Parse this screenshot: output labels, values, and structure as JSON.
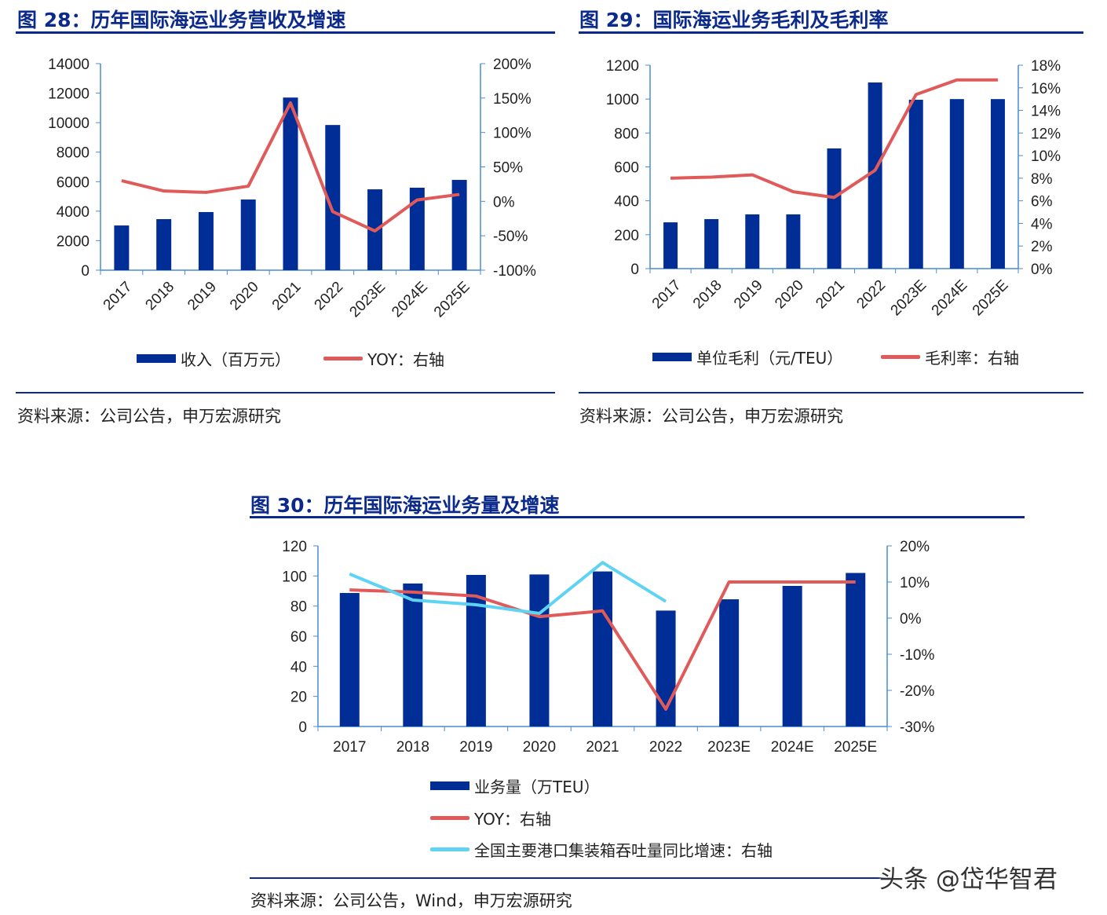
{
  "colors": {
    "bar": "#002d96",
    "line": "#e05a5a",
    "line2": "#5fd3f3",
    "axis": "#4a8ccf",
    "title": "#0b2a8c"
  },
  "charts": [
    {
      "id": "fig28",
      "title": "图 28：历年国际海运业务营收及增速",
      "source": "资料来源：公司公告，申万宏源研究",
      "legend": [
        "收入（百万元）",
        "YOY：右轴"
      ],
      "chart_data": {
        "type": "bar+line",
        "categories": [
          "2017",
          "2018",
          "2019",
          "2020",
          "2021",
          "2022",
          "2023E",
          "2024E",
          "2025E"
        ],
        "series": [
          {
            "name": "收入（百万元）",
            "type": "bar",
            "axis": "left",
            "values": [
              3030,
              3460,
              3940,
              4790,
              11700,
              9840,
              5480,
              5590,
              6120
            ]
          },
          {
            "name": "YOY：右轴",
            "type": "line",
            "axis": "right",
            "values": [
              30,
              15,
              13,
              22,
              143,
              -15,
              -43,
              2,
              10
            ]
          }
        ],
        "ylim_left": [
          0,
          14000
        ],
        "yticks_left": [
          "0",
          "2000",
          "4000",
          "6000",
          "8000",
          "10000",
          "12000",
          "14000"
        ],
        "ylim_right": [
          -100,
          200
        ],
        "yticks_right": [
          "-100%",
          "-50%",
          "0%",
          "50%",
          "100%",
          "150%",
          "200%"
        ],
        "xlabels_rotated": true,
        "grid": false,
        "legend_placement": "bottom"
      }
    },
    {
      "id": "fig29",
      "title": "图 29：国际海运业务毛利及毛利率",
      "source": "资料来源：公司公告，申万宏源研究",
      "legend": [
        "单位毛利（元/TEU）",
        "毛利率：右轴"
      ],
      "chart_data": {
        "type": "bar+line",
        "categories": [
          "2017",
          "2018",
          "2019",
          "2020",
          "2021",
          "2022",
          "2023E",
          "2024E",
          "2025E"
        ],
        "series": [
          {
            "name": "单位毛利（元/TEU）",
            "type": "bar",
            "axis": "left",
            "values": [
              273,
              292,
              320,
              320,
              709,
              1098,
              996,
              1000,
              1000
            ]
          },
          {
            "name": "毛利率：右轴",
            "type": "line",
            "axis": "right",
            "values": [
              8.0,
              8.1,
              8.3,
              6.8,
              6.3,
              8.7,
              15.4,
              16.7,
              16.7
            ]
          }
        ],
        "ylim_left": [
          0,
          1200
        ],
        "yticks_left": [
          "0",
          "200",
          "400",
          "600",
          "800",
          "1000",
          "1200"
        ],
        "ylim_right": [
          0,
          18
        ],
        "yticks_right": [
          "0%",
          "2%",
          "4%",
          "6%",
          "8%",
          "10%",
          "12%",
          "14%",
          "16%",
          "18%"
        ],
        "xlabels_rotated": true,
        "grid": false,
        "legend_placement": "bottom"
      }
    },
    {
      "id": "fig30",
      "title": "图 30：历年国际海运业务量及增速",
      "source": "资料来源：公司公告，Wind，申万宏源研究",
      "legend": [
        "业务量（万TEU）",
        "YOY：右轴",
        "全国主要港口集装箱吞吐量同比增速：右轴"
      ],
      "chart_data": {
        "type": "bar+line",
        "categories": [
          "2017",
          "2018",
          "2019",
          "2020",
          "2021",
          "2022",
          "2023E",
          "2024E",
          "2025E"
        ],
        "series": [
          {
            "name": "业务量（万TEU）",
            "type": "bar",
            "axis": "left",
            "values": [
              88.7,
              95,
              100.7,
              101,
              103,
              77,
              84.5,
              93.4,
              102
            ]
          },
          {
            "name": "YOY：右轴",
            "type": "line",
            "axis": "right",
            "values": [
              7.8,
              7.2,
              6.1,
              0.4,
              2,
              -25.2,
              10,
              10,
              10
            ]
          },
          {
            "name": "全国主要港口集装箱吞吐量同比增速：右轴",
            "type": "line",
            "axis": "right",
            "values": [
              12.2,
              5,
              3.7,
              1.3,
              15.4,
              4.6,
              null,
              null,
              null
            ]
          }
        ],
        "ylim_left": [
          0,
          120
        ],
        "yticks_left": [
          "0",
          "20",
          "40",
          "60",
          "80",
          "100",
          "120"
        ],
        "ylim_right": [
          -30,
          20
        ],
        "yticks_right": [
          "-30%",
          "-20%",
          "-10%",
          "0%",
          "10%",
          "20%"
        ],
        "xlabels_rotated": false,
        "grid": false,
        "legend_placement": "bottom"
      }
    }
  ],
  "watermark": "头条 @岱华智君"
}
